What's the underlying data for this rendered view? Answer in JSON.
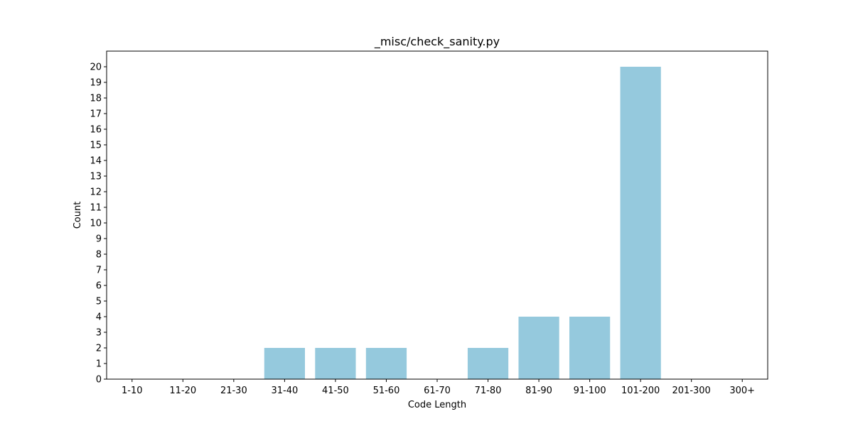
{
  "chart_data": {
    "type": "bar",
    "title": "_misc/check_sanity.py",
    "xlabel": "Code Length",
    "ylabel": "Count",
    "categories": [
      "1-10",
      "11-20",
      "21-30",
      "31-40",
      "41-50",
      "51-60",
      "61-70",
      "71-80",
      "81-90",
      "91-100",
      "101-200",
      "201-300",
      "300+"
    ],
    "values": [
      0,
      0,
      0,
      2,
      2,
      2,
      0,
      2,
      4,
      4,
      20,
      0,
      0
    ],
    "ylim": [
      0,
      21
    ],
    "yticks": [
      0,
      1,
      2,
      3,
      4,
      5,
      6,
      7,
      8,
      9,
      10,
      11,
      12,
      13,
      14,
      15,
      16,
      17,
      18,
      19,
      20
    ],
    "grid": false,
    "bar_color": "#95c9dd"
  }
}
